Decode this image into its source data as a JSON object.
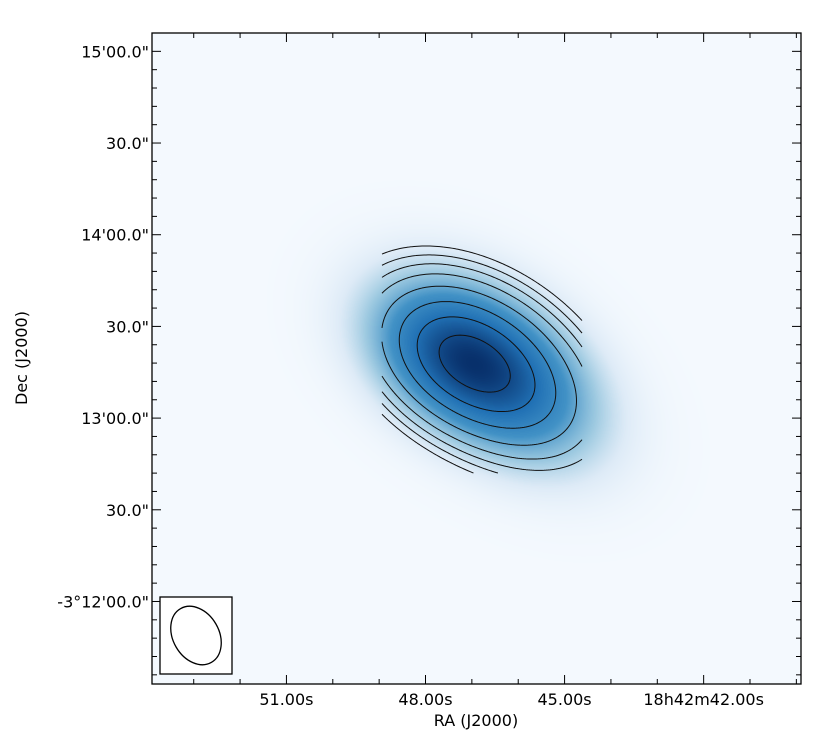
{
  "chart_data": {
    "type": "heatmap",
    "title": "",
    "xlabel": "RA (J2000)",
    "ylabel": "Dec (J2000)",
    "x_ticks": [
      "51.00s",
      "48.00s",
      "45.00s",
      "18h42m42.00s"
    ],
    "y_ticks": [
      "-3°12'00.0\"",
      "30.0\"",
      "13'00.0\"",
      "30.0\"",
      "14'00.0\"",
      "30.0\"",
      "15'00.0\""
    ],
    "x_tick_values_s": [
      51,
      48,
      45,
      42
    ],
    "y_tick_values_arcsec": [
      0,
      30,
      60,
      90,
      120,
      150,
      180
    ],
    "xlim_s": [
      53.9,
      39.9
    ],
    "ylim_arcsec": [
      186,
      -27
    ],
    "colormap": "blues",
    "colors": {
      "low": "#f4f9fe",
      "high": "#08306b",
      "contour": "#111111"
    },
    "source": {
      "components": [
        {
          "ra_s": 46.42,
          "dec_arcsec": 75.0,
          "amplitude": 1.0,
          "sigma_ra_s": 1.3,
          "sigma_dec_arcsec": 12.5,
          "angle_deg": 38
        },
        {
          "ra_s": 47.45,
          "dec_arcsec": 80.0,
          "amplitude": 0.85,
          "sigma_ra_s": 1.1,
          "sigma_dec_arcsec": 11.5,
          "angle_deg": 35
        }
      ]
    },
    "contour_levels": [
      0.03,
      0.05,
      0.08,
      0.13,
      0.22,
      0.38,
      0.58,
      0.82
    ],
    "beam": {
      "present": true,
      "angle_deg": 30
    }
  }
}
